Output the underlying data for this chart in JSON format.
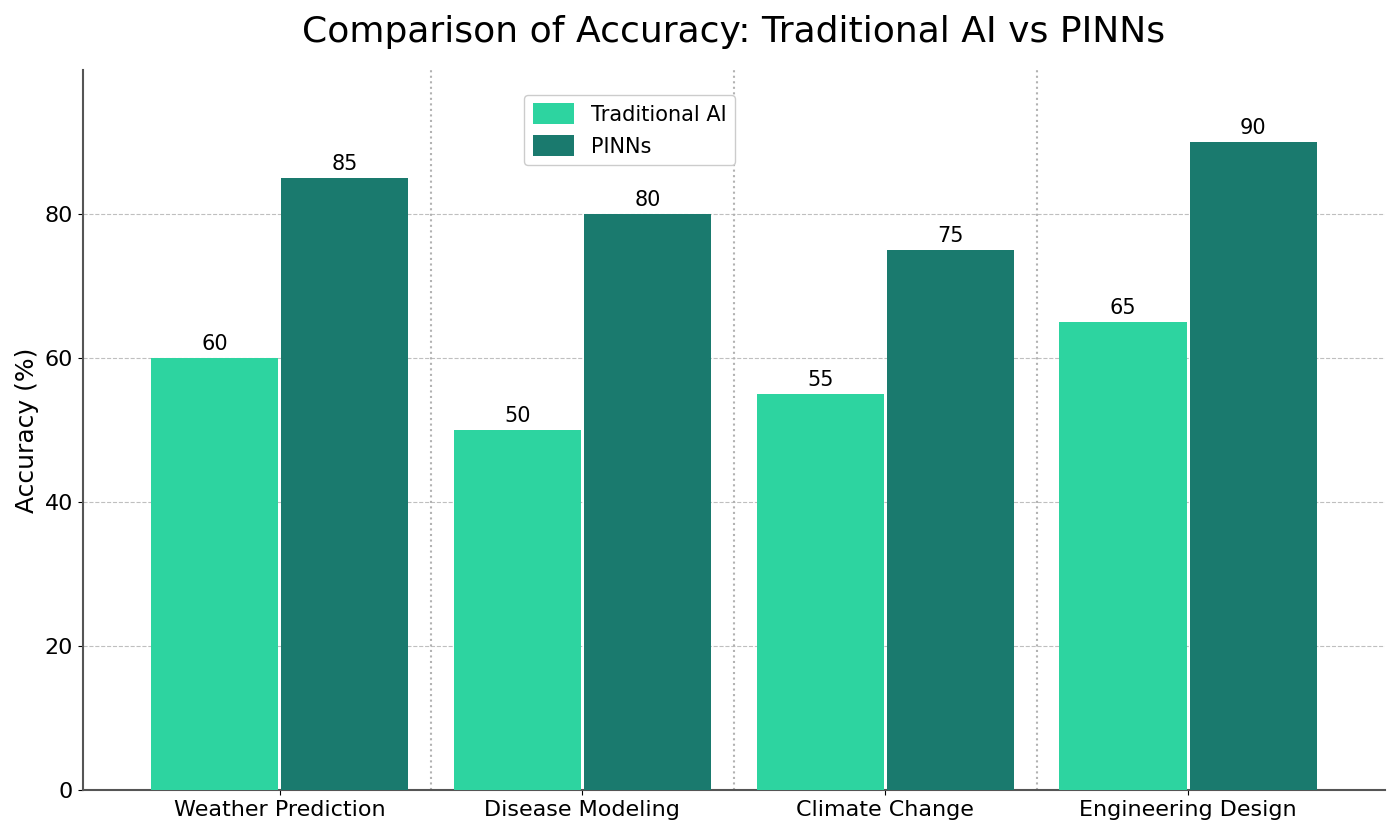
{
  "title": "Comparison of Accuracy: Traditional AI vs PINNs",
  "categories": [
    "Weather Prediction",
    "Disease Modeling",
    "Climate Change",
    "Engineering Design"
  ],
  "traditional_ai": [
    60,
    50,
    55,
    65
  ],
  "pinns": [
    85,
    80,
    75,
    90
  ],
  "traditional_ai_color": "#2dd4a0",
  "pinns_color": "#1a7a6e",
  "ylabel": "Accuracy (%)",
  "ylim": [
    0,
    100
  ],
  "yticks": [
    0,
    20,
    40,
    60,
    80
  ],
  "legend_labels": [
    "Traditional AI",
    "PINNs"
  ],
  "bar_width": 0.42,
  "title_fontsize": 26,
  "label_fontsize": 18,
  "tick_fontsize": 16,
  "annotation_fontsize": 15,
  "legend_fontsize": 15,
  "background_color": "#ffffff",
  "grid_color": "#b0b0b0",
  "spine_color": "#555555"
}
